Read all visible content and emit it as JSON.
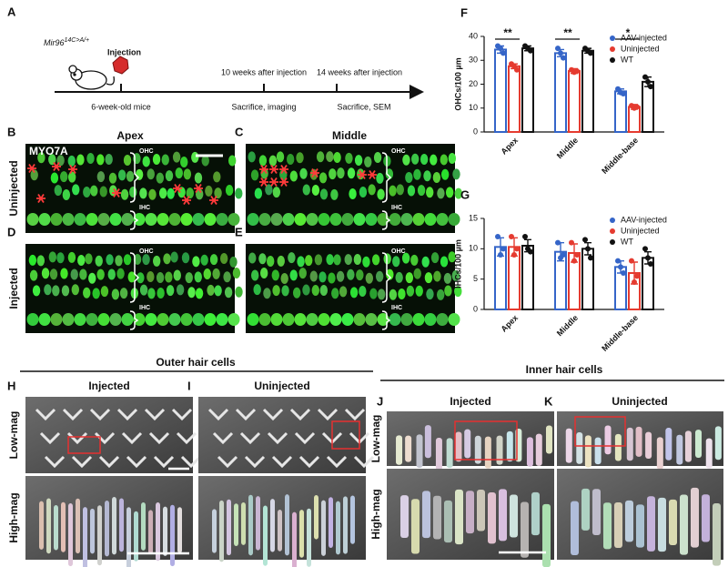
{
  "timeline": {
    "label": "A",
    "genotype": "Mir96",
    "genotype_sup": "14C>A/+",
    "injection": "Injection",
    "events_top": [
      "10 weeks after injection",
      "14 weeks after injection"
    ],
    "events_bottom": [
      "6-week-old mice",
      "Sacrifice, imaging",
      "Sacrifice, SEM"
    ]
  },
  "myo7a": {
    "labels": [
      "B",
      "C",
      "D",
      "E"
    ],
    "columns": [
      "Apex",
      "Middle"
    ],
    "rows": [
      "Uninjected",
      "Injected"
    ],
    "stain": "MYO7A",
    "ohc": "OHC",
    "ihc": "IHC"
  },
  "chart_data": [
    {
      "label": "F",
      "type": "bar",
      "y_label": "OHCs/100 µm",
      "categories": [
        "Apex",
        "Middle",
        "Middle-base"
      ],
      "ylim": [
        0,
        40
      ],
      "yticks": [
        0,
        10,
        20,
        30,
        40
      ],
      "significance": [
        "**",
        "**",
        "*"
      ],
      "series": [
        {
          "name": "AAV-injected",
          "color": "#3565c8",
          "values": [
            34.5,
            33,
            17
          ],
          "errors": [
            1.5,
            1.5,
            1
          ],
          "points": [
            [
              36,
              35,
              33
            ],
            [
              35,
              33,
              31
            ],
            [
              18,
              16.5,
              16
            ]
          ]
        },
        {
          "name": "Uninjected",
          "color": "#e53b30",
          "values": [
            27.5,
            25.5,
            10.5
          ],
          "errors": [
            1,
            1,
            1
          ],
          "points": [
            [
              28.5,
              27.5,
              26
            ],
            [
              26,
              25,
              25.5
            ],
            [
              11,
              10,
              10.5
            ]
          ]
        },
        {
          "name": "WT",
          "color": "#111111",
          "values": [
            35,
            34,
            21
          ],
          "errors": [
            1,
            1,
            2
          ],
          "points": [
            [
              36,
              35,
              34
            ],
            [
              35,
              34,
              33
            ],
            [
              23,
              21,
              19
            ]
          ]
        }
      ]
    },
    {
      "label": "G",
      "type": "bar",
      "y_label": "IHCs/100 µm",
      "categories": [
        "Apex",
        "Middle",
        "Middle-base"
      ],
      "ylim": [
        0,
        15
      ],
      "yticks": [
        0,
        5,
        10,
        15
      ],
      "series": [
        {
          "name": "AAV-injected",
          "color": "#3565c8",
          "values": [
            10.3,
            9.5,
            7
          ],
          "errors": [
            1.5,
            1.5,
            1
          ],
          "points": [
            [
              12,
              9,
              10
            ],
            [
              11,
              8.5,
              9
            ],
            [
              8,
              7,
              6
            ]
          ]
        },
        {
          "name": "Uninjected",
          "color": "#e53b30",
          "values": [
            10.3,
            9.3,
            6
          ],
          "errors": [
            1.5,
            1.5,
            1.8
          ],
          "points": [
            [
              12,
              9,
              10
            ],
            [
              11,
              8,
              9
            ],
            [
              8,
              4.5,
              5.5
            ]
          ]
        },
        {
          "name": "WT",
          "color": "#111111",
          "values": [
            10.5,
            10,
            8.5
          ],
          "errors": [
            1,
            1,
            1
          ],
          "points": [
            [
              12,
              10,
              9.5
            ],
            [
              11.5,
              10,
              8.5
            ],
            [
              10,
              8.5,
              7.5
            ]
          ]
        }
      ]
    }
  ],
  "sem": {
    "outer": {
      "title": "Outer hair cells",
      "labels": [
        "H",
        "I"
      ],
      "columns": [
        "Injected",
        "Uninjected"
      ]
    },
    "inner": {
      "title": "Inner hair cells",
      "labels": [
        "J",
        "K"
      ],
      "columns": [
        "Injected",
        "Uninjected"
      ]
    },
    "rows": [
      "Low-mag",
      "High-mag"
    ]
  }
}
